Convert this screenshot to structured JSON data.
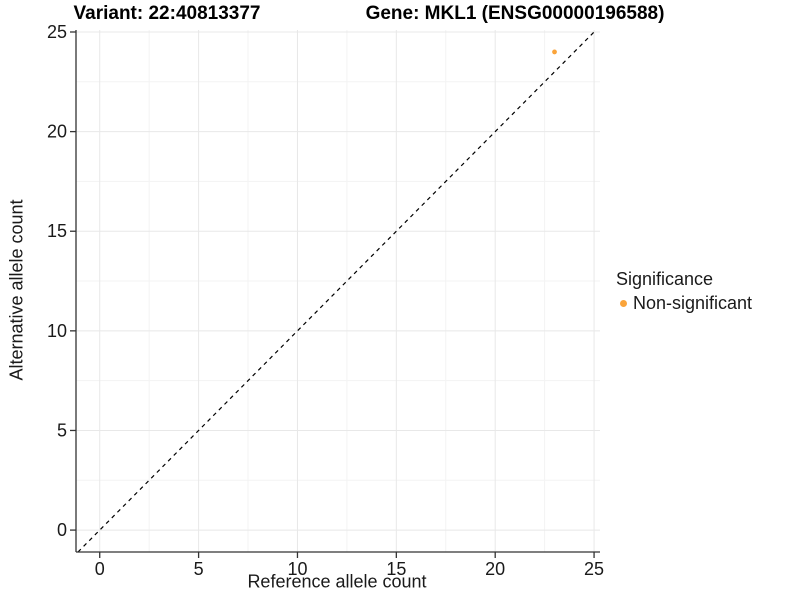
{
  "chart_data": {
    "type": "scatter",
    "titles": {
      "left": "Variant: 22:40813377",
      "right": "Gene: MKL1 (ENSG00000196588)"
    },
    "xlabel": "Reference allele count",
    "ylabel": "Alternative allele count",
    "xlim": [
      -1.2,
      25.3
    ],
    "ylim": [
      -1.1,
      25.1
    ],
    "x_ticks": [
      0,
      5,
      10,
      15,
      20,
      25
    ],
    "y_ticks": [
      0,
      5,
      10,
      15,
      20,
      25
    ],
    "x_minor_ticks": [
      2.5,
      7.5,
      12.5,
      17.5,
      22.5
    ],
    "y_minor_ticks": [
      2.5,
      7.5,
      12.5,
      17.5,
      22.5
    ],
    "grid": true,
    "identity_line": {
      "slope": 1,
      "intercept": 0,
      "style": "dashed",
      "color": "#000000"
    },
    "series": [
      {
        "name": "Non-significant",
        "color": "#FAA43A",
        "points": [
          {
            "x": 23,
            "y": 24
          }
        ]
      }
    ],
    "legend": {
      "title": "Significance",
      "position": "right"
    },
    "colors": {
      "axis": "#333333",
      "text": "#1a1a1a",
      "grid_major": "#e8e8e8",
      "grid_minor": "#f3f3f3",
      "panel_background": "#ffffff"
    }
  }
}
